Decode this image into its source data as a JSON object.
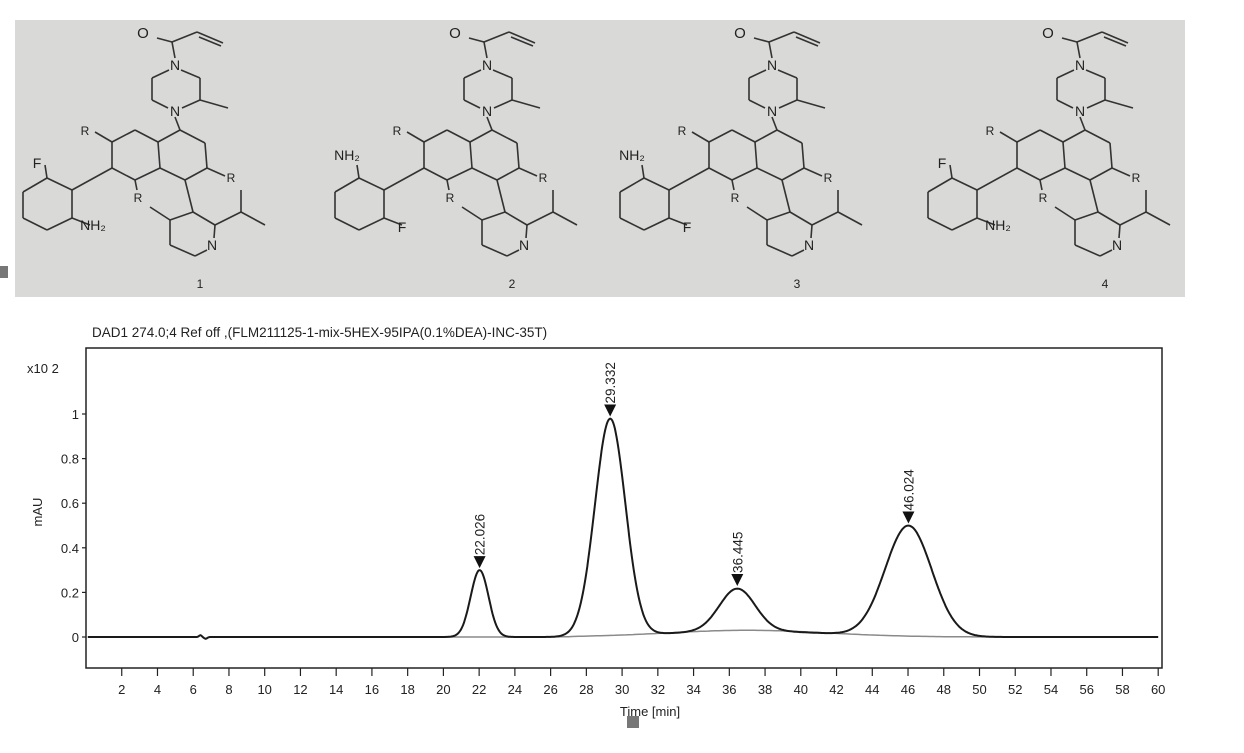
{
  "structures": [
    {
      "number": "1",
      "carbonyl_o": "O",
      "n_top": "N",
      "n_bottom": "N",
      "r1": "R",
      "r2": "R",
      "r3": "R",
      "ortho_top": "F",
      "ortho_bottom": "NH₂",
      "pyridine_n": "N"
    },
    {
      "number": "2",
      "carbonyl_o": "O",
      "n_top": "N",
      "n_bottom": "N",
      "r1": "R",
      "r2": "R",
      "r3": "R",
      "ortho_top": "NH₂",
      "ortho_bottom": "F",
      "pyridine_n": "N"
    },
    {
      "number": "3",
      "carbonyl_o": "O",
      "n_top": "N",
      "n_bottom": "N",
      "r1": "R",
      "r2": "R",
      "r3": "R",
      "ortho_top": "NH₂",
      "ortho_bottom": "F",
      "pyridine_n": "N"
    },
    {
      "number": "4",
      "carbonyl_o": "O",
      "n_top": "N",
      "n_bottom": "N",
      "r1": "R",
      "r2": "R",
      "r3": "R",
      "ortho_top": "F",
      "ortho_bottom": "NH₂",
      "pyridine_n": "N"
    }
  ],
  "chart_data": {
    "type": "line",
    "title": "DAD1 274.0;4 Ref off ,(FLM211125-1-mix-5HEX-95IPA(0.1%DEA)-INC-35T)",
    "xlabel": "Time [min]",
    "ylabel": "mAU",
    "y_multiplier": "x10 2",
    "xlim": [
      0,
      60.2
    ],
    "ylim": [
      -0.14,
      1.3
    ],
    "x_ticks": [
      2,
      4,
      6,
      8,
      10,
      12,
      14,
      16,
      18,
      20,
      22,
      24,
      26,
      28,
      30,
      32,
      34,
      36,
      38,
      40,
      42,
      44,
      46,
      48,
      50,
      52,
      54,
      56,
      58,
      60
    ],
    "y_ticks": [
      0,
      0.2,
      0.4,
      0.6,
      0.8,
      1
    ],
    "y_tick_labels": [
      "0",
      "0.2",
      "0.4",
      "0.6",
      "0.8",
      "1"
    ],
    "grid": false,
    "line_color": "#1a1a1a",
    "baseline_color": "#8a8a8a",
    "peaks": [
      {
        "label": "22.026",
        "time": 22.026,
        "height": 0.3
      },
      {
        "label": "29.332",
        "time": 29.332,
        "height": 0.98
      },
      {
        "label": "36.445",
        "time": 36.445,
        "height": 0.22
      },
      {
        "label": "46.024",
        "time": 46.024,
        "height": 0.5
      }
    ]
  }
}
